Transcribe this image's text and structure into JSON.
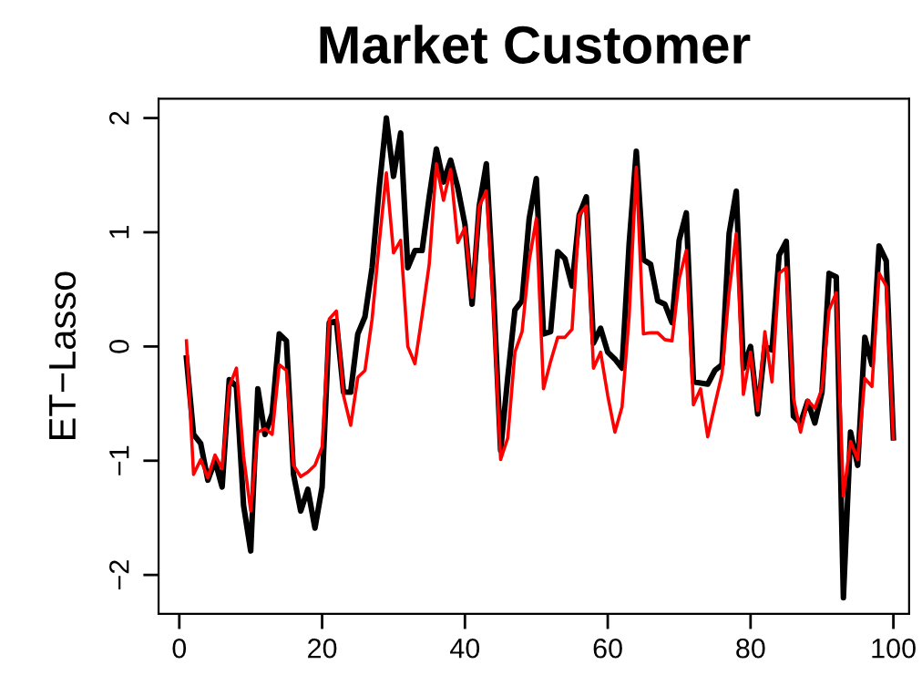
{
  "chart_data": {
    "type": "line",
    "title": "Market Customer",
    "ylabel": "ET−Lasso",
    "x": [
      1,
      2,
      3,
      4,
      5,
      6,
      7,
      8,
      9,
      10,
      11,
      12,
      13,
      14,
      15,
      16,
      17,
      18,
      19,
      20,
      21,
      22,
      23,
      24,
      25,
      26,
      27,
      28,
      29,
      30,
      31,
      32,
      33,
      34,
      35,
      36,
      37,
      38,
      39,
      40,
      41,
      42,
      43,
      44,
      45,
      46,
      47,
      48,
      49,
      50,
      51,
      52,
      53,
      54,
      55,
      56,
      57,
      58,
      59,
      60,
      61,
      62,
      63,
      64,
      65,
      66,
      67,
      68,
      69,
      70,
      71,
      72,
      73,
      74,
      75,
      76,
      77,
      78,
      79,
      80,
      81,
      82,
      83,
      84,
      85,
      86,
      87,
      88,
      89,
      90,
      91,
      92,
      93,
      94,
      95,
      96,
      97,
      98,
      99,
      100
    ],
    "series": [
      {
        "color": "#000000",
        "values": [
          -0.1,
          -0.77,
          -0.85,
          -1.17,
          -1.0,
          -1.23,
          -0.29,
          -0.35,
          -1.39,
          -1.79,
          -0.37,
          -0.77,
          -0.59,
          0.11,
          0.05,
          -1.12,
          -1.44,
          -1.25,
          -1.59,
          -1.23,
          0.21,
          0.22,
          -0.4,
          -0.4,
          0.11,
          0.26,
          0.69,
          1.39,
          2.0,
          1.49,
          1.87,
          0.69,
          0.84,
          0.84,
          1.31,
          1.73,
          1.44,
          1.63,
          1.39,
          1.07,
          0.37,
          1.23,
          1.6,
          0.48,
          -0.91,
          -0.27,
          0.32,
          0.4,
          1.12,
          1.47,
          0.11,
          0.13,
          0.83,
          0.77,
          0.53,
          1.15,
          1.31,
          0.03,
          0.16,
          -0.05,
          -0.11,
          -0.19,
          0.9,
          1.71,
          0.76,
          0.72,
          0.4,
          0.37,
          0.21,
          0.93,
          1.17,
          -0.31,
          -0.32,
          -0.33,
          -0.21,
          -0.16,
          0.99,
          1.36,
          -0.19,
          0.0,
          -0.59,
          0.0,
          -0.03,
          0.8,
          0.92,
          -0.61,
          -0.67,
          -0.48,
          -0.67,
          -0.4,
          0.64,
          0.61,
          -2.2,
          -0.75,
          -1.04,
          0.08,
          -0.16,
          0.88,
          0.75,
          -0.8
        ]
      },
      {
        "color": "#ff0000",
        "values": [
          0.05,
          -1.12,
          -0.99,
          -1.15,
          -0.95,
          -1.07,
          -0.35,
          -0.19,
          -0.96,
          -1.44,
          -0.75,
          -0.72,
          -0.77,
          -0.16,
          -0.21,
          -1.04,
          -1.14,
          -1.1,
          -1.04,
          -0.88,
          0.24,
          0.31,
          -0.43,
          -0.69,
          -0.27,
          -0.21,
          0.24,
          0.91,
          1.52,
          0.82,
          0.93,
          0.0,
          -0.15,
          0.27,
          0.72,
          1.6,
          1.28,
          1.55,
          0.91,
          1.04,
          0.43,
          1.23,
          1.36,
          0.32,
          -0.99,
          -0.8,
          -0.05,
          0.13,
          0.75,
          1.12,
          -0.37,
          -0.13,
          0.08,
          0.08,
          0.15,
          1.15,
          1.23,
          -0.19,
          -0.05,
          -0.43,
          -0.75,
          -0.53,
          0.27,
          1.57,
          0.11,
          0.12,
          0.12,
          0.06,
          0.05,
          0.59,
          0.84,
          -0.51,
          -0.37,
          -0.79,
          -0.51,
          -0.24,
          0.48,
          0.99,
          -0.42,
          -0.05,
          -0.56,
          0.13,
          -0.31,
          0.64,
          0.69,
          -0.45,
          -0.75,
          -0.47,
          -0.54,
          -0.37,
          0.32,
          0.47,
          -1.31,
          -0.83,
          -0.99,
          -0.28,
          -0.35,
          0.64,
          0.53,
          -0.81
        ]
      }
    ],
    "xlim": [
      -2.9,
      102.2
    ],
    "ylim": [
      -2.34,
      2.17
    ],
    "xticks": [
      0,
      20,
      40,
      60,
      80,
      100
    ],
    "yticks": [
      {
        "value": -2,
        "label": "−2"
      },
      {
        "value": -1,
        "label": "−1"
      },
      0,
      1,
      2
    ],
    "marker": "none",
    "line_style": "solid",
    "grid": false,
    "legend": false
  }
}
